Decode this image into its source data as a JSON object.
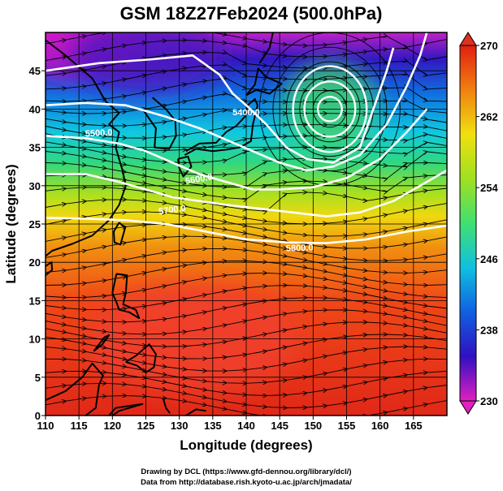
{
  "title": "GSM 18Z27Feb2024 (500.0hPa)",
  "axes": {
    "x": {
      "label": "Longitude (degrees)",
      "range": [
        110,
        170
      ],
      "ticks": [
        110,
        115,
        120,
        125,
        130,
        135,
        140,
        145,
        150,
        155,
        160,
        165
      ]
    },
    "y": {
      "label": "Latitude  (degrees)",
      "range": [
        0,
        50
      ],
      "ticks": [
        0,
        5,
        10,
        15,
        20,
        25,
        30,
        35,
        40,
        45
      ]
    }
  },
  "colorbar": {
    "min": 230,
    "max": 270,
    "labels": [
      230,
      238,
      246,
      254,
      262,
      270
    ],
    "stops": [
      "#e020c0",
      "#3010c0",
      "#1060e0",
      "#10c0e0",
      "#40e070",
      "#a0e020",
      "#f0e010",
      "#f08010",
      "#e02010"
    ]
  },
  "contours": {
    "color": "#ffffff",
    "labels": [
      "5400.0",
      "5500.0",
      "5600.0",
      "5700.0",
      "5800.0"
    ],
    "lines": [
      {
        "value": "5400.0",
        "points": [
          [
            110,
            45
          ],
          [
            118,
            46
          ],
          [
            126,
            46.5
          ],
          [
            132,
            47
          ],
          [
            136,
            44.5
          ],
          [
            138,
            42
          ],
          [
            140,
            40.5
          ],
          [
            143,
            38
          ],
          [
            146,
            35
          ],
          [
            149,
            33.5
          ],
          [
            153,
            33
          ],
          [
            157,
            35
          ],
          [
            159,
            40
          ],
          [
            161,
            45
          ],
          [
            162,
            48
          ]
        ]
      },
      {
        "value": "5500.0",
        "points": [
          [
            110,
            40.5
          ],
          [
            116,
            40.8
          ],
          [
            122,
            40.5
          ],
          [
            128,
            39
          ],
          [
            133,
            37.5
          ],
          [
            137,
            36
          ],
          [
            141,
            34.5
          ],
          [
            145,
            33
          ],
          [
            149,
            32
          ],
          [
            153,
            32.5
          ],
          [
            157,
            34
          ],
          [
            161,
            38
          ],
          [
            164,
            43
          ],
          [
            166,
            47
          ],
          [
            167,
            50
          ]
        ]
      },
      {
        "value": "5600.0",
        "points": [
          [
            110,
            36.5
          ],
          [
            116,
            36.2
          ],
          [
            121,
            35.5
          ],
          [
            125,
            34.5
          ],
          [
            129,
            33
          ],
          [
            133,
            31.5
          ],
          [
            137,
            30.5
          ],
          [
            141,
            29.5
          ],
          [
            145,
            29.5
          ],
          [
            150,
            29.8
          ],
          [
            155,
            31
          ],
          [
            160,
            33.5
          ],
          [
            164,
            37
          ],
          [
            167,
            40
          ]
        ]
      },
      {
        "value": "5700.0",
        "points": [
          [
            110,
            31.5
          ],
          [
            116,
            31.5
          ],
          [
            121,
            30.5
          ],
          [
            125,
            29.5
          ],
          [
            129,
            28.5
          ],
          [
            133,
            28
          ],
          [
            137,
            27.5
          ],
          [
            142,
            27
          ],
          [
            147,
            26.5
          ],
          [
            152,
            26
          ],
          [
            157,
            26.5
          ],
          [
            162,
            28
          ],
          [
            167,
            30.5
          ],
          [
            170,
            32
          ]
        ]
      },
      {
        "value": "5800.0",
        "points": [
          [
            110,
            25.8
          ],
          [
            116,
            25.7
          ],
          [
            122,
            25.5
          ],
          [
            128,
            25
          ],
          [
            134,
            24
          ],
          [
            140,
            23
          ],
          [
            146,
            22.6
          ],
          [
            152,
            22.5
          ],
          [
            158,
            23
          ],
          [
            164,
            24
          ],
          [
            170,
            24.8
          ]
        ]
      }
    ],
    "low_center": {
      "lon": 152.5,
      "lat": 40
    },
    "low_rings": [
      {
        "rx": 1.8,
        "ry": 1.6
      },
      {
        "rx": 3.8,
        "ry": 3.6
      },
      {
        "rx": 5.5,
        "ry": 5.6
      }
    ]
  },
  "field_regions": [
    {
      "name": "cold-core",
      "lon": 115,
      "lat": 49,
      "rx": 10,
      "ry": 5,
      "color": "#d018c8"
    },
    {
      "name": "cold-core-2",
      "lon": 125,
      "lat": 47,
      "rx": 12,
      "ry": 5,
      "color": "#5018c0"
    },
    {
      "name": "warm-core",
      "lon": 132,
      "lat": 10,
      "rx": 16,
      "ry": 7,
      "color": "#f04030"
    },
    {
      "name": "cool-low",
      "lon": 152.5,
      "lat": 40,
      "rx": 7,
      "ry": 6,
      "color": "#40d070"
    }
  ],
  "coastlines": [
    {
      "name": "china-coast",
      "points": [
        [
          110,
          49
        ],
        [
          113,
          47
        ],
        [
          117,
          44
        ],
        [
          119,
          41
        ],
        [
          121,
          39.5
        ],
        [
          119.5,
          38
        ],
        [
          121,
          37
        ],
        [
          120.5,
          35
        ],
        [
          121.5,
          32
        ],
        [
          122,
          30
        ],
        [
          121,
          27.5
        ],
        [
          119.5,
          25.5
        ],
        [
          117,
          23.5
        ],
        [
          114,
          22.4
        ],
        [
          111,
          21.5
        ],
        [
          110,
          20.8
        ]
      ]
    },
    {
      "name": "korea",
      "points": [
        [
          124.5,
          40
        ],
        [
          126.5,
          37.5
        ],
        [
          126.3,
          35
        ],
        [
          128.5,
          34.8
        ],
        [
          129.5,
          36.5
        ],
        [
          129.4,
          38.5
        ],
        [
          128,
          40
        ],
        [
          126,
          41.5
        ]
      ]
    },
    {
      "name": "honshu",
      "points": [
        [
          130.8,
          34
        ],
        [
          132.5,
          34.8
        ],
        [
          135,
          34.5
        ],
        [
          137,
          34.7
        ],
        [
          139,
          35
        ],
        [
          140.7,
          35.8
        ],
        [
          141,
          38
        ],
        [
          141.7,
          40.5
        ],
        [
          141.3,
          41.3
        ],
        [
          140.2,
          40.5
        ],
        [
          139.8,
          39
        ],
        [
          138.5,
          37.8
        ],
        [
          137,
          37
        ],
        [
          135.5,
          35.6
        ],
        [
          133,
          35.5
        ],
        [
          131,
          34.5
        ]
      ]
    },
    {
      "name": "hokkaido",
      "points": [
        [
          140,
          41.8
        ],
        [
          141.3,
          43.2
        ],
        [
          141.8,
          45.3
        ],
        [
          143,
          44.2
        ],
        [
          145.3,
          43.3
        ],
        [
          143.5,
          42
        ],
        [
          141.5,
          42.5
        ],
        [
          140,
          41.8
        ]
      ]
    },
    {
      "name": "kyushu",
      "points": [
        [
          129.8,
          33.5
        ],
        [
          131.3,
          33.8
        ],
        [
          131.8,
          32.5
        ],
        [
          130.6,
          31.2
        ],
        [
          130,
          32.3
        ],
        [
          129.8,
          33.5
        ]
      ]
    },
    {
      "name": "taiwan",
      "points": [
        [
          121,
          25.2
        ],
        [
          121.9,
          24.5
        ],
        [
          121.2,
          22.3
        ],
        [
          120.3,
          22.6
        ],
        [
          120.2,
          24
        ],
        [
          121,
          25.2
        ]
      ]
    },
    {
      "name": "luzon",
      "points": [
        [
          120.6,
          18.5
        ],
        [
          122.2,
          18.3
        ],
        [
          122,
          16
        ],
        [
          121.6,
          14.5
        ],
        [
          123.5,
          13.8
        ],
        [
          124,
          12.7
        ],
        [
          122.5,
          13.5
        ],
        [
          121,
          13.8
        ],
        [
          120.6,
          14.8
        ],
        [
          120,
          16
        ],
        [
          120.6,
          18.5
        ]
      ]
    },
    {
      "name": "mindanao",
      "points": [
        [
          122,
          7
        ],
        [
          123.5,
          7.8
        ],
        [
          125.5,
          9.3
        ],
        [
          126.5,
          8
        ],
        [
          126.2,
          6.3
        ],
        [
          125,
          5.6
        ],
        [
          123.7,
          6.5
        ],
        [
          122,
          7
        ]
      ]
    },
    {
      "name": "palawan",
      "points": [
        [
          117.2,
          8.4
        ],
        [
          118.5,
          9.3
        ],
        [
          119.5,
          10.5
        ],
        [
          118.8,
          10.2
        ],
        [
          117.2,
          8.4
        ]
      ]
    },
    {
      "name": "borneo",
      "points": [
        [
          110,
          2
        ],
        [
          113,
          3.2
        ],
        [
          115.5,
          5
        ],
        [
          117,
          6.8
        ],
        [
          118.6,
          5.2
        ],
        [
          118,
          4
        ],
        [
          117.5,
          1
        ],
        [
          116,
          0
        ]
      ]
    },
    {
      "name": "sulawesi",
      "points": [
        [
          119.5,
          0
        ],
        [
          120.5,
          1
        ],
        [
          124.5,
          1.5
        ],
        [
          121,
          0.6
        ],
        [
          120,
          0
        ]
      ]
    },
    {
      "name": "halmahera",
      "points": [
        [
          127.6,
          2.2
        ],
        [
          128,
          1
        ],
        [
          128.6,
          0.3
        ]
      ]
    },
    {
      "name": "new-guinea-w",
      "points": [
        [
          131,
          0
        ],
        [
          132.5,
          0.8
        ],
        [
          134,
          0.6
        ]
      ]
    },
    {
      "name": "sakhalin-kuril",
      "points": [
        [
          142,
          46
        ],
        [
          143.5,
          48
        ],
        [
          144,
          50
        ]
      ]
    },
    {
      "name": "hainan",
      "points": [
        [
          110,
          19.5
        ],
        [
          110.9,
          20
        ],
        [
          111,
          19
        ],
        [
          110,
          18.3
        ]
      ]
    }
  ],
  "credits": [
    "Drawing by DCL (https://www.gfd-dennou.org/library/dcl/)",
    "Data from http://database.rish.kyoto-u.ac.jp/arch/jmadata/"
  ]
}
